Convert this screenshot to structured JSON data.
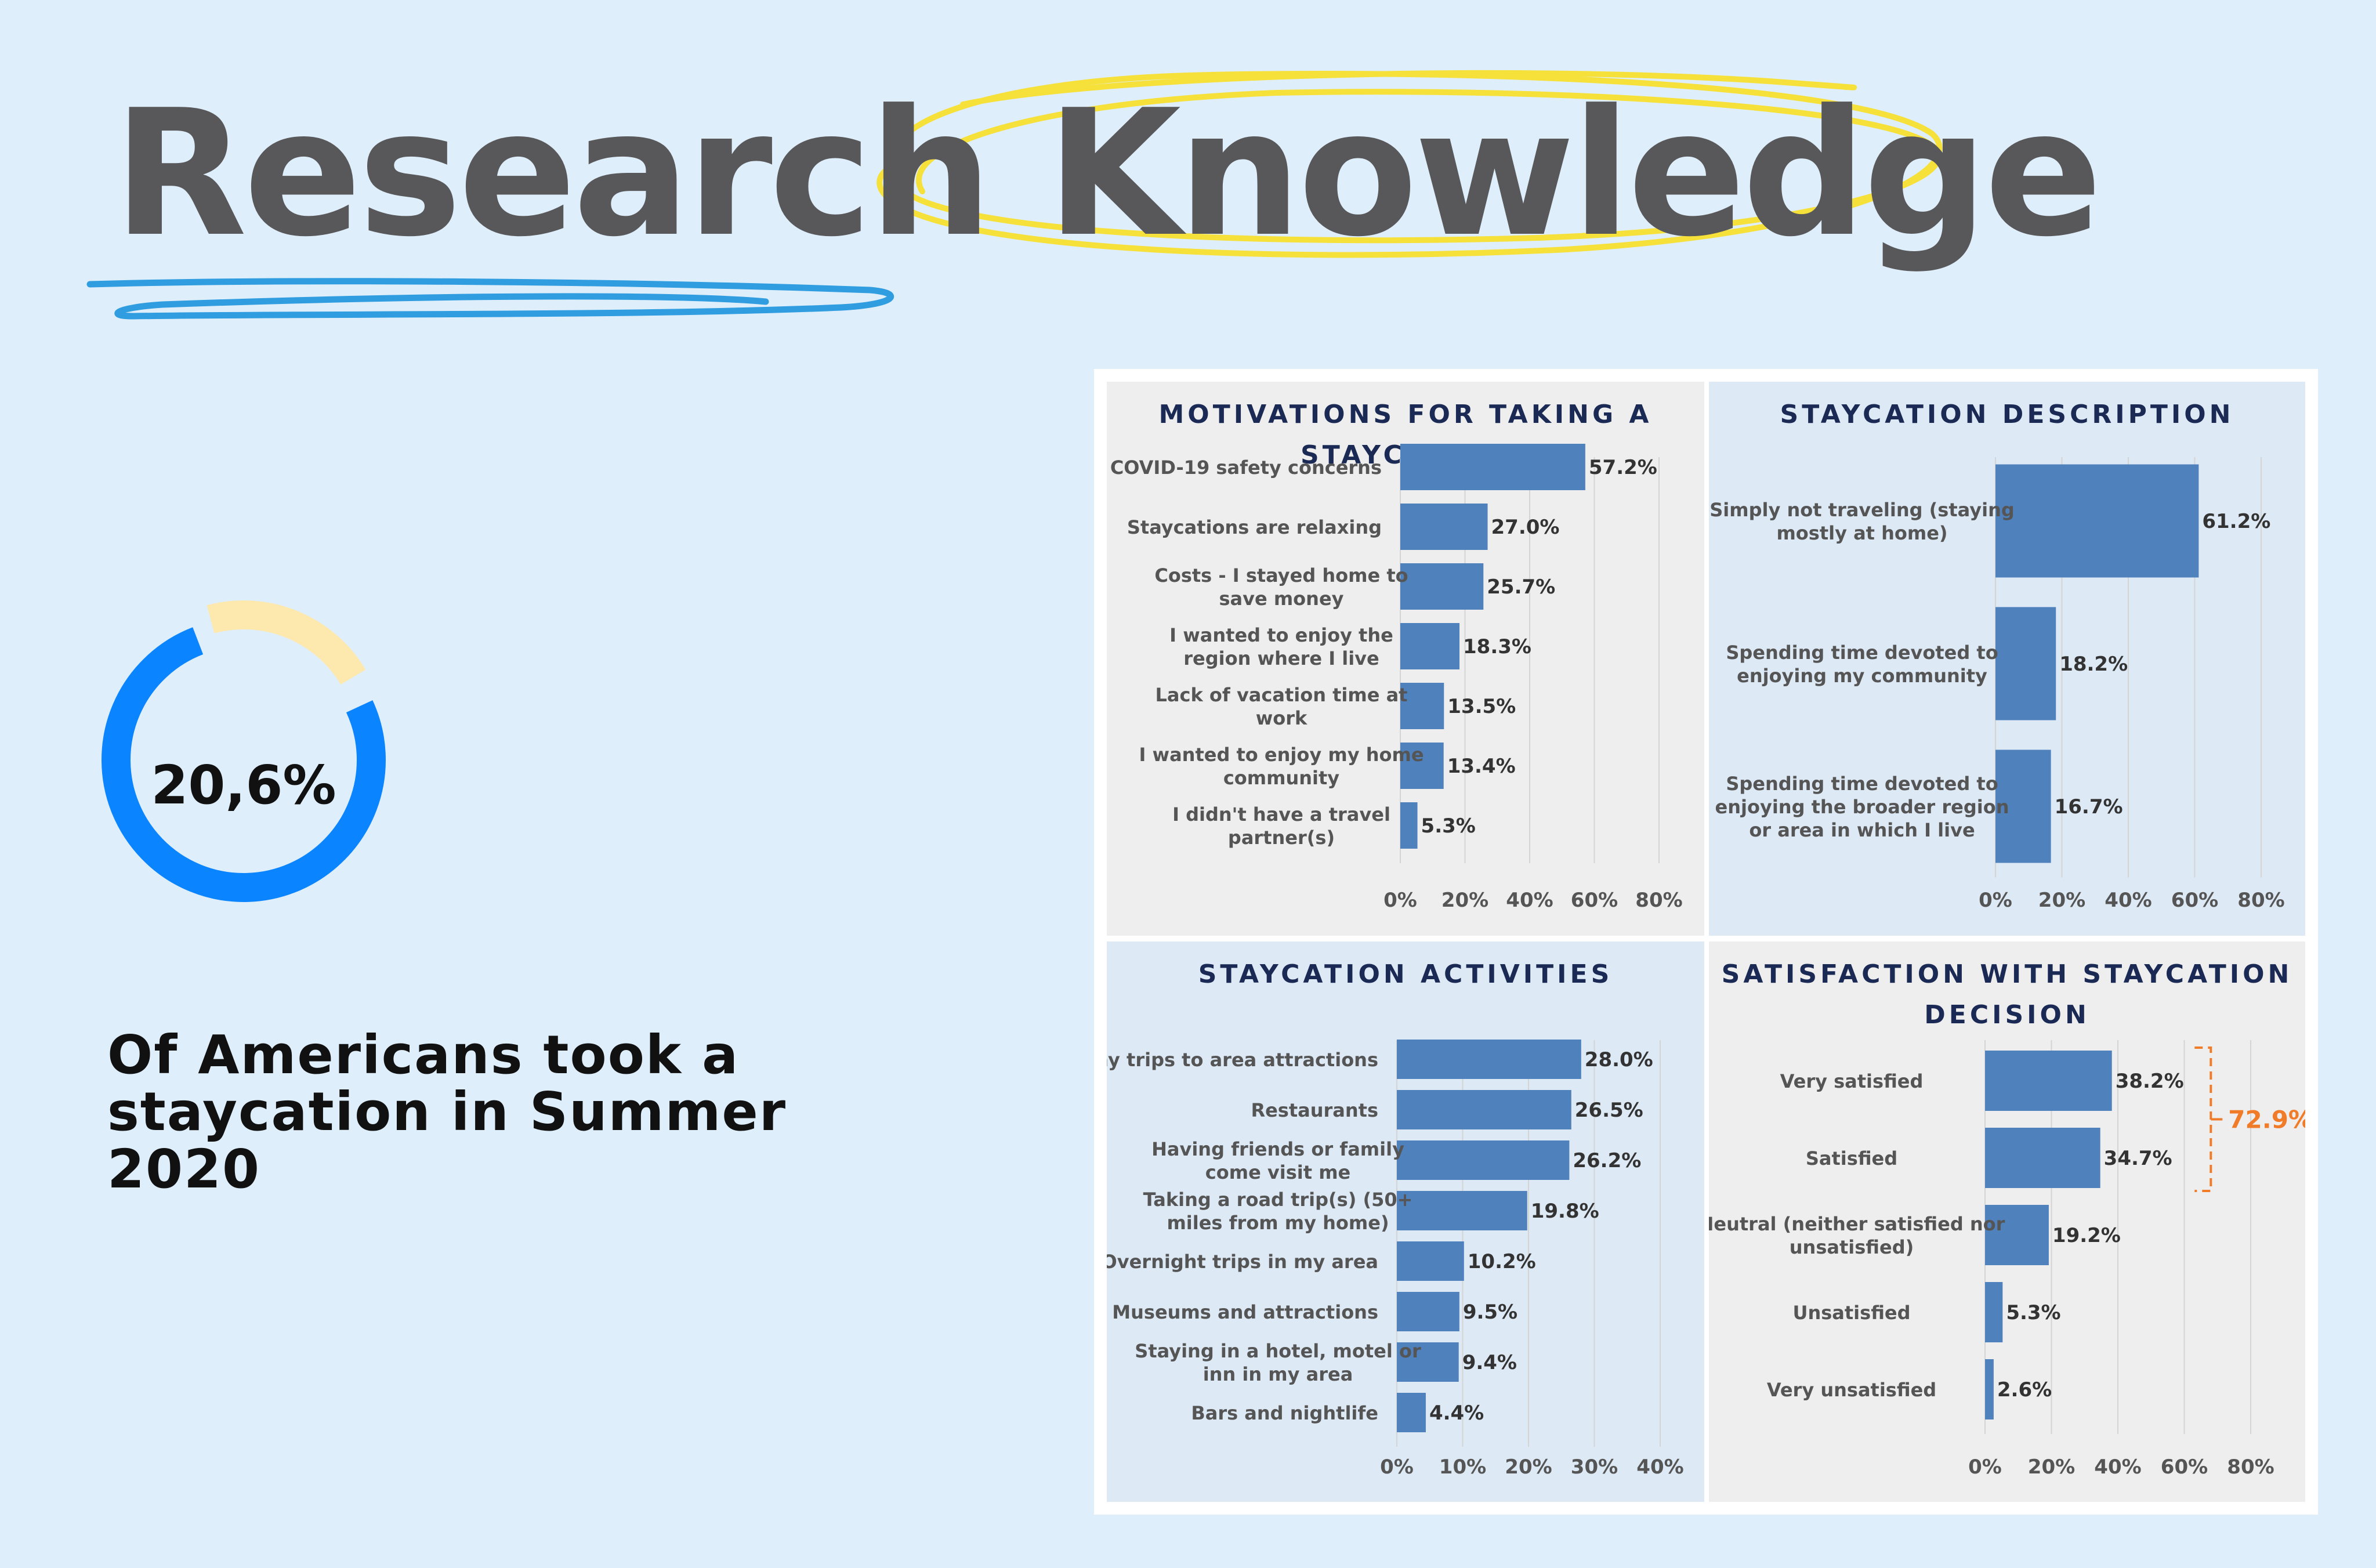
{
  "header": {
    "title": "Research Knowledge"
  },
  "highlight": {
    "percent": 20.6,
    "percent_label": "20,6%",
    "caption": "Of Americans took a staycation in Summer 2020",
    "ring_color": "#0a84ff",
    "accent_color": "#fde8ad"
  },
  "colors": {
    "bar": "#4f81bd",
    "title": "#1b2a55",
    "bracket": "#f07c2a",
    "underline": "#2f9de0",
    "circle": "#f6e03a"
  },
  "chart_data": [
    {
      "type": "bar",
      "orientation": "horizontal",
      "title": "MOTIVATIONS FOR TAKING A STAYCATION",
      "categories": [
        [
          "COVID-19 safety concerns"
        ],
        [
          "Staycations are relaxing"
        ],
        [
          "Costs - I stayed home to",
          "save money"
        ],
        [
          "I wanted to enjoy the",
          "region  where I live"
        ],
        [
          "Lack of vacation time at",
          "work"
        ],
        [
          "I wanted to enjoy my home",
          "community"
        ],
        [
          "I didn't have a travel",
          "partner(s)"
        ]
      ],
      "values": [
        57.2,
        27.0,
        25.7,
        18.3,
        13.5,
        13.4,
        5.3
      ],
      "value_labels": [
        "57.2%",
        "27.0%",
        "25.7%",
        "18.3%",
        "13.5%",
        "13.4%",
        "5.3%"
      ],
      "xlim": [
        0,
        80
      ],
      "ticks": [
        "0%",
        "20%",
        "40%",
        "60%",
        "80%"
      ],
      "grid": true
    },
    {
      "type": "bar",
      "orientation": "horizontal",
      "title": "STAYCATION DESCRIPTION",
      "categories": [
        [
          "Simply not traveling (staying",
          "mostly at home)"
        ],
        [
          "Spending time devoted to",
          "enjoying my community"
        ],
        [
          "Spending time  devoted to",
          "enjoying the broader region",
          "or area in which I live"
        ]
      ],
      "values": [
        61.2,
        18.2,
        16.7
      ],
      "value_labels": [
        "61.2%",
        "18.2%",
        "16.7%"
      ],
      "xlim": [
        0,
        80
      ],
      "ticks": [
        "0%",
        "20%",
        "40%",
        "60%",
        "80%"
      ],
      "grid": true
    },
    {
      "type": "bar",
      "orientation": "horizontal",
      "title": "STAYCATION ACTIVITIES",
      "categories": [
        [
          "Day trips to area attractions"
        ],
        [
          "Restaurants"
        ],
        [
          "Having friends or family",
          "come visit me"
        ],
        [
          "Taking a road trip(s) (50+",
          "miles from my home)"
        ],
        [
          "Overnight trips in my area"
        ],
        [
          "Museums and attractions"
        ],
        [
          "Staying in a hotel, motel or",
          "inn in my area"
        ],
        [
          "Bars and nightlife"
        ]
      ],
      "values": [
        28.0,
        26.5,
        26.2,
        19.8,
        10.2,
        9.5,
        9.4,
        4.4
      ],
      "value_labels": [
        "28.0%",
        "26.5%",
        "26.2%",
        "19.8%",
        "10.2%",
        "9.5%",
        "9.4%",
        "4.4%"
      ],
      "xlim": [
        0,
        40
      ],
      "ticks": [
        "0%",
        "10%",
        "20%",
        "30%",
        "40%"
      ],
      "grid": true
    },
    {
      "type": "bar",
      "orientation": "horizontal",
      "title": "SATISFACTION WITH STAYCATION DECISION",
      "title_lines": [
        "SATISFACTION WITH STAYCATION",
        "DECISION"
      ],
      "categories": [
        [
          "Very satisfied"
        ],
        [
          "Satisfied"
        ],
        [
          "Neutral (neither satisfied nor",
          "unsatisfied)"
        ],
        [
          "Unsatisfied"
        ],
        [
          "Very unsatisfied"
        ]
      ],
      "values": [
        38.2,
        34.7,
        19.2,
        5.3,
        2.6
      ],
      "value_labels": [
        "38.2%",
        "34.7%",
        "19.2%",
        "5.3%",
        "2.6%"
      ],
      "xlim": [
        0,
        80
      ],
      "ticks": [
        "0%",
        "20%",
        "40%",
        "60%",
        "80%"
      ],
      "grid": true,
      "annotation": {
        "label": "72.9%",
        "bracket_rows": [
          0,
          1
        ]
      }
    }
  ]
}
